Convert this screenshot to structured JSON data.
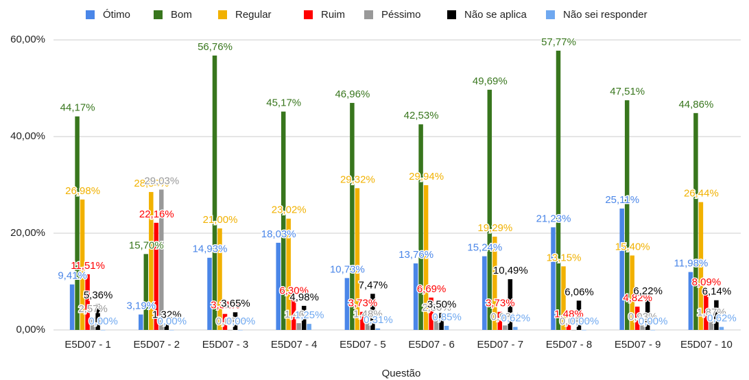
{
  "chart_data": {
    "type": "bar",
    "x_label": "Questão",
    "categories": [
      "E5D07 - 1",
      "E5D07 - 2",
      "E5D07 - 3",
      "E5D07 - 4",
      "E5D07 - 5",
      "E5D07 - 6",
      "E5D07 - 7",
      "E5D07 - 8",
      "E5D07 - 9",
      "E5D07 - 10"
    ],
    "series": [
      {
        "name": "Ótimo",
        "color": "#4a86e8",
        "values": [
          9.41,
          3.19,
          14.93,
          18.03,
          10.73,
          13.76,
          15.24,
          21.23,
          25.11,
          11.98
        ],
        "value_labels": [
          "9,41%",
          "3,19%",
          "14,93%",
          "18,03%",
          "10,73%",
          "13,76%",
          "15,24%",
          "21,23%",
          "25,11%",
          "11,98%"
        ]
      },
      {
        "name": "Bom",
        "color": "#38761d",
        "values": [
          44.17,
          15.7,
          56.76,
          45.17,
          46.96,
          42.53,
          49.69,
          57.77,
          47.51,
          44.86
        ],
        "value_labels": [
          "44,17%",
          "15,70%",
          "56,76%",
          "45,17%",
          "46,96%",
          "42,53%",
          "49,69%",
          "57,77%",
          "47,51%",
          "44,86%"
        ]
      },
      {
        "name": "Regular",
        "color": "#f1b100",
        "values": [
          26.98,
          28.53,
          21.0,
          23.02,
          29.32,
          29.94,
          19.29,
          13.15,
          15.4,
          26.44
        ],
        "value_labels": [
          "26,98%",
          "28,53%",
          "21,00%",
          "23,02%",
          "29,32%",
          "29,94%",
          "19,29%",
          "13,15%",
          "15,40%",
          "26,44%"
        ]
      },
      {
        "name": "Ruim",
        "color": "#ff0000",
        "values": [
          11.51,
          22.16,
          3.31,
          6.3,
          3.73,
          6.69,
          3.73,
          1.48,
          4.82,
          8.09
        ],
        "value_labels": [
          "11,51%",
          "22,16%",
          "3,31%",
          "6,30%",
          "3,73%",
          "6,69%",
          "3,73%",
          "1,48%",
          "4,82%",
          "8,09%"
        ]
      },
      {
        "name": "Péssimo",
        "color": "#999999",
        "values": [
          2.57,
          29.03,
          0.0,
          1.4,
          1.48,
          2.8,
          0.93,
          0.0,
          0.93,
          1.87
        ],
        "value_labels": [
          "2,57%",
          "29,03%",
          "0,00%",
          "1,40%",
          "1,48%",
          "2,80%",
          "0,93%",
          "0,00%",
          "0,93%",
          "1,87%"
        ]
      },
      {
        "name": "Não se aplica",
        "color": "#000000",
        "values": [
          5.36,
          1.32,
          3.65,
          4.98,
          7.47,
          3.5,
          10.49,
          6.06,
          6.22,
          6.14
        ],
        "value_labels": [
          "5,36%",
          "1,32%",
          "3,65%",
          "4,98%",
          "7,47%",
          "3,50%",
          "10,49%",
          "6,06%",
          "6,22%",
          "6,14%"
        ]
      },
      {
        "name": "Não sei responder",
        "color": "#6fa8f0",
        "values": [
          0.0,
          0.0,
          0.0,
          1.25,
          0.31,
          0.85,
          0.62,
          0.0,
          0.0,
          0.62
        ],
        "value_labels": [
          "0,00%",
          "0,00%",
          "0,00%",
          "1,25%",
          "0,31%",
          "0,85%",
          "0,62%",
          "0,00%",
          "0,00%",
          "0,62%"
        ]
      }
    ],
    "ylim": [
      0,
      63
    ],
    "yticks": [
      {
        "value": 0,
        "label": "0,00%"
      },
      {
        "value": 20,
        "label": "20,00%"
      },
      {
        "value": 40,
        "label": "40,00%"
      },
      {
        "value": 60,
        "label": "60,00%"
      }
    ],
    "grid": true,
    "legend": "top"
  }
}
